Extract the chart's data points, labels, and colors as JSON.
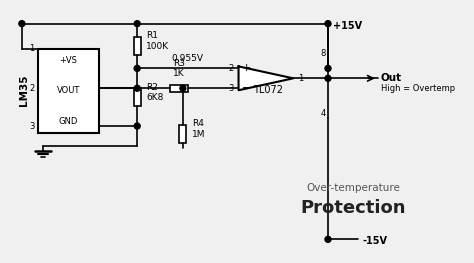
{
  "bg_color": "#f0f0f0",
  "line_color": "#000000",
  "text_color": "#000000",
  "title_small": "Over-temperature",
  "title_large": "Protection",
  "lm35_label": "LM35",
  "opamp_label": "TL072",
  "out_label": "Out",
  "out_sublabel": "High = Overtemp",
  "voltage_pos": "+15V",
  "voltage_neg": "-15V",
  "voltage_ref": "0.955V",
  "r1_label": "R1\n100K",
  "r2_label": "R2\n6K8",
  "r3_label": "R3\n1K",
  "r4_label": "R4\n1M",
  "pin1": "1",
  "pin2": "2",
  "pin3": "3",
  "pin_out1": "1",
  "pin_plus": "2",
  "pin_minus": "3",
  "pin_top": "8",
  "pin_bot": "4",
  "vs_label": "+VS",
  "vout_label": "VOUT",
  "gnd_label": "GND"
}
